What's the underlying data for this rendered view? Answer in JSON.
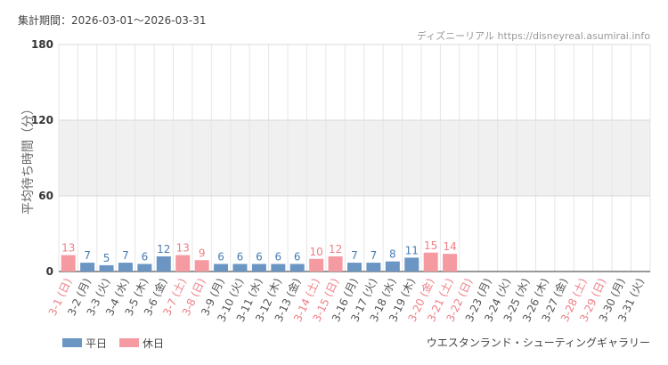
{
  "chart_data": {
    "type": "bar",
    "period": "集計期間：2026-03-01～2026-03-31",
    "source": "ディズニーリアル https://disneyreal.asumirai.info",
    "y_label": "平均待ち時間（分）",
    "subject": "ウエスタンランド・シューティングギャラリー",
    "categories": [
      "3-1 (日)",
      "3-2 (月)",
      "3-3 (火)",
      "3-4 (水)",
      "3-5 (木)",
      "3-6 (金)",
      "3-7 (土)",
      "3-8 (日)",
      "3-9 (月)",
      "3-10 (火)",
      "3-11 (水)",
      "3-12 (木)",
      "3-13 (金)",
      "3-14 (土)",
      "3-15 (日)",
      "3-16 (月)",
      "3-17 (火)",
      "3-18 (水)",
      "3-19 (木)",
      "3-20 (金)",
      "3-21 (土)",
      "3-22 (日)",
      "3-23 (月)",
      "3-24 (火)",
      "3-25 (水)",
      "3-26 (木)",
      "3-27 (金)",
      "3-28 (土)",
      "3-29 (日)",
      "3-30 (月)",
      "3-31 (火)"
    ],
    "category_colors": [
      "#ee7f86",
      "#555",
      "#555",
      "#555",
      "#555",
      "#555",
      "#ee7f86",
      "#ee7f86",
      "#555",
      "#555",
      "#555",
      "#555",
      "#555",
      "#ee7f86",
      "#ee7f86",
      "#555",
      "#555",
      "#555",
      "#555",
      "#ee7f86",
      "#ee7f86",
      "#ee7f86",
      "#555",
      "#555",
      "#555",
      "#555",
      "#555",
      "#ee7f86",
      "#ee7f86",
      "#555",
      "#555"
    ],
    "series": [
      {
        "name": "平日",
        "color": "#6b96c3",
        "label_color": "#4a7db3",
        "values": [
          null,
          7,
          5,
          7,
          6,
          12,
          null,
          null,
          6,
          6,
          6,
          6,
          6,
          null,
          null,
          7,
          7,
          8,
          11,
          null,
          null,
          null,
          null,
          null,
          null,
          null,
          null,
          null,
          null,
          null,
          null
        ]
      },
      {
        "name": "休日",
        "color": "#f59aa0",
        "label_color": "#ee7f86",
        "values": [
          13,
          null,
          null,
          null,
          null,
          null,
          13,
          9,
          null,
          null,
          null,
          null,
          null,
          10,
          12,
          null,
          null,
          null,
          null,
          15,
          14,
          null,
          null,
          null,
          null,
          null,
          null,
          null,
          null,
          null,
          null
        ]
      }
    ],
    "ylim": [
      0,
      180
    ],
    "yticks": [
      0,
      60,
      120,
      180
    ],
    "shaded_band": [
      60,
      120
    ],
    "grid": true
  }
}
